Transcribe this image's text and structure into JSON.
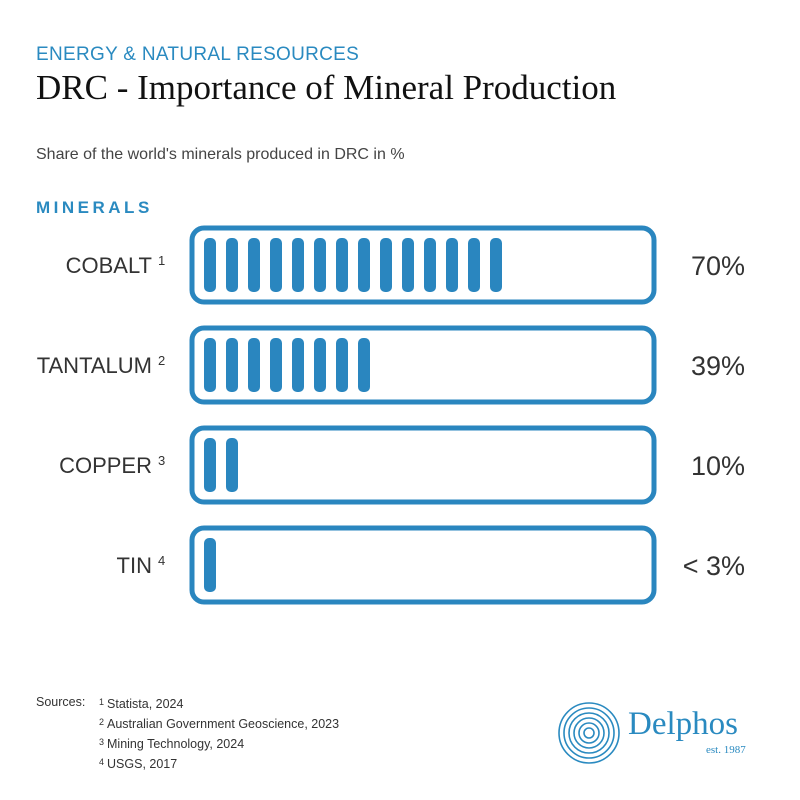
{
  "header": {
    "category": "ENERGY & NATURAL RESOURCES",
    "title": "DRC - Importance of Mineral Production",
    "subtitle": "Share of the world's minerals produced in DRC in %",
    "section_label": "MINERALS"
  },
  "chart_data": {
    "type": "bar",
    "categories": [
      "COBALT",
      "TANTALUM",
      "COPPER",
      "TIN"
    ],
    "footnote_marks": [
      "1",
      "2",
      "3",
      "4"
    ],
    "values": [
      70,
      39,
      10,
      3
    ],
    "value_labels": [
      "70%",
      "39%",
      "10%",
      "< 3%"
    ],
    "ylim": [
      0,
      100
    ],
    "ylabel": "Share of the world's minerals produced in DRC in %"
  },
  "sources": {
    "label": "Sources:",
    "items": [
      {
        "mark": "1",
        "text": "Statista, 2024"
      },
      {
        "mark": "2",
        "text": "Australian Government Geoscience, 2023"
      },
      {
        "mark": "3",
        "text": "Mining Technology, 2024"
      },
      {
        "mark": "4",
        "text": "USGS, 2017"
      }
    ]
  },
  "logo": {
    "wordmark": "Delphos",
    "tagline": "est. 1987"
  },
  "colors": {
    "accent": "#2a8ac0",
    "bar": "#2a86bf",
    "text": "#333333"
  }
}
